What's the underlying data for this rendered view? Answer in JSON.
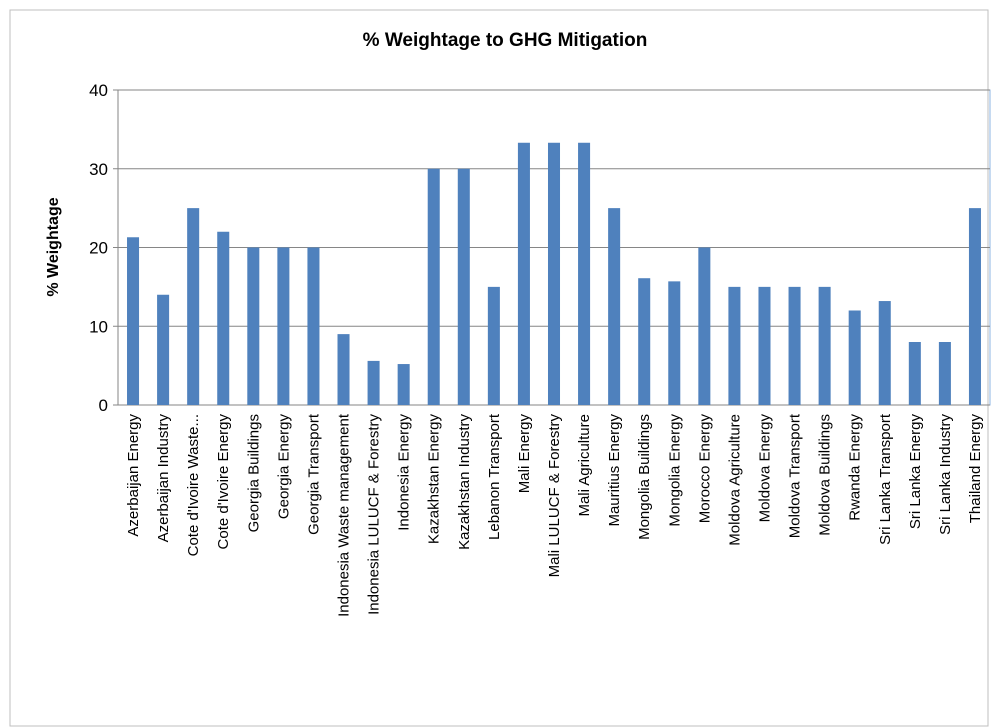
{
  "chart_data": {
    "type": "bar",
    "title": "% Weightage to GHG Mitigation",
    "y_label": "% Weightage",
    "categories": [
      "Azerbaijan Energy",
      "Azerbaijan Industry",
      "Cote d'Ivoire Waste...",
      "Cote d'Ivoire Energy",
      "Georgia Buildings",
      "Georgia Energy",
      "Georgia Transport",
      "Indonesia Waste management",
      "Indonesia LULUCF & Forestry",
      "Indonesia Energy",
      "Kazakhstan Energy",
      "Kazakhstan Industry",
      "Lebanon Transport",
      "Mali Energy",
      "Mali LULUCF & Forestry",
      "Mali Agriculture",
      "Mauritius Energy",
      "Mongolia Buildings",
      "Mongolia Energy",
      "Morocco Energy",
      "Moldova Agriculture",
      "Moldova Energy",
      "Moldova Transport",
      "Moldova Buildings",
      "Rwanda Energy",
      "Sri Lanka Transport",
      "Sri Lanka Energy",
      "Sri Lanka Industry",
      "Thailand Energy"
    ],
    "values": [
      21.3,
      14,
      25,
      22,
      20,
      20,
      20,
      9,
      5.6,
      5.2,
      30,
      30,
      15,
      33.3,
      33.3,
      33.3,
      25,
      16.1,
      15.7,
      20,
      15,
      15,
      15,
      15,
      12,
      13.2,
      8,
      8,
      25
    ],
    "color": "#4f81bd",
    "ylim": [
      0,
      40
    ],
    "yticks": [
      0,
      10,
      20,
      30,
      40
    ],
    "grid": true
  }
}
